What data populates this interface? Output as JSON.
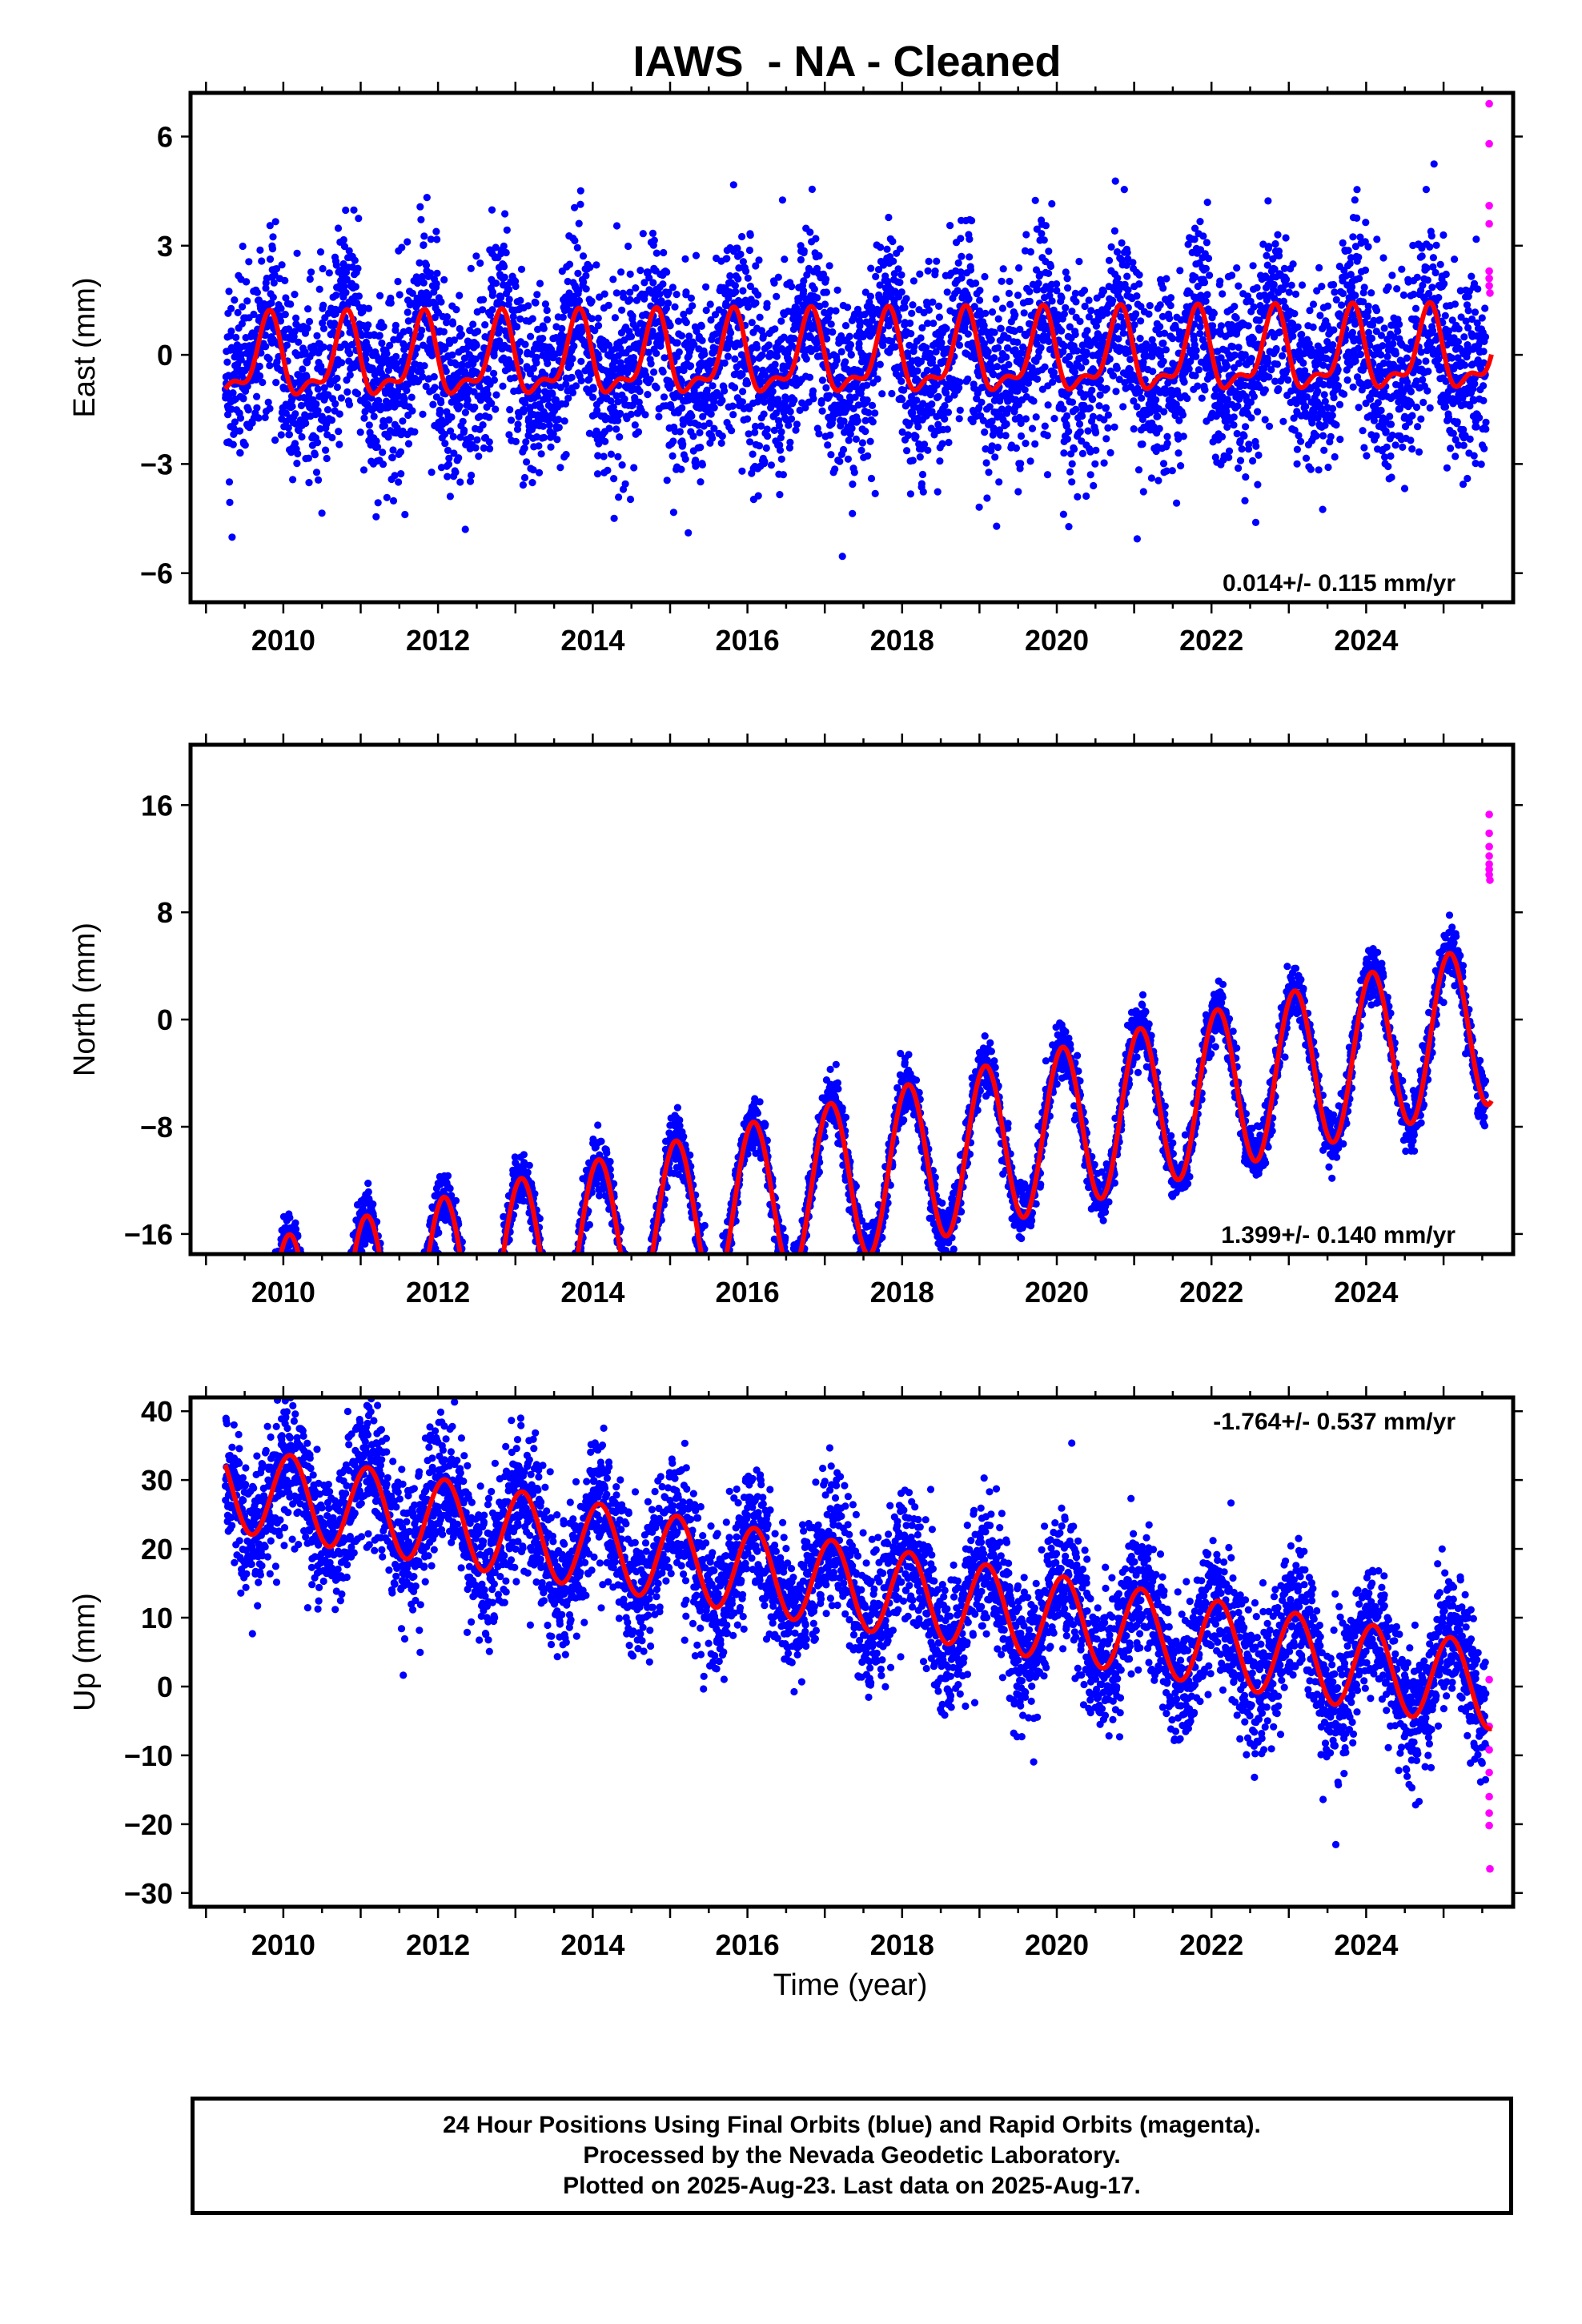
{
  "figure": {
    "title": "IAWS  - NA - Cleaned",
    "xlabel": "Time (year)",
    "footer": [
      "24 Hour Positions Using Final Orbits (blue) and Rapid Orbits (magenta).",
      "Processed by the Nevada Geodetic Laboratory.",
      "Plotted on 2025-Aug-23. Last data on 2025-Aug-17."
    ],
    "colors": {
      "final_orbits": "#0000ff",
      "rapid_orbits": "#ff00ff",
      "model": "#ff0000",
      "frame": "#000000"
    }
  },
  "chart_data": [
    {
      "type": "scatter",
      "name": "east",
      "ylabel": "East (mm)",
      "rate_label": "0.014+/- 0.115 mm/yr",
      "xlim": [
        2008.8,
        2025.9
      ],
      "ylim": [
        -6.8,
        7.2
      ],
      "xticks": [
        2010,
        2012,
        2014,
        2016,
        2018,
        2020,
        2022,
        2024
      ],
      "yticks": [
        -6,
        -3,
        0,
        3,
        6
      ],
      "ytick_labels": [
        "−6",
        "−3",
        "0",
        "3",
        "6"
      ],
      "series": [
        {
          "role": "final_orbits",
          "x_start": 2009.25,
          "x_end": 2025.55,
          "trend": 0.014,
          "offset": -0.1,
          "annual_amp": 1.0,
          "annual_phase": 2.8,
          "semiannual_amp": 0.45,
          "scatter_sd": 1.3
        },
        {
          "role": "rapid_orbits",
          "x": [
            2025.59,
            2025.59,
            2025.59,
            2025.59,
            2025.59,
            2025.59,
            2025.59,
            2025.6
          ],
          "y": [
            6.9,
            5.8,
            4.1,
            3.6,
            2.3,
            2.1,
            1.9,
            1.7
          ]
        },
        {
          "role": "model",
          "x_start": 2009.25,
          "x_end": 2025.62,
          "trend": 0.014,
          "offset": -0.1,
          "annual_amp": 1.0,
          "annual_phase": 2.8,
          "semiannual_amp": 0.45
        }
      ]
    },
    {
      "type": "scatter",
      "name": "north",
      "ylabel": "North (mm)",
      "rate_label": "1.399+/- 0.140 mm/yr",
      "xlim": [
        2008.8,
        2025.9
      ],
      "ylim": [
        -17.5,
        20.5
      ],
      "xticks": [
        2010,
        2012,
        2014,
        2016,
        2018,
        2020,
        2022,
        2024
      ],
      "yticks": [
        -16,
        -8,
        0,
        8,
        16
      ],
      "ytick_labels": [
        "−16",
        "−8",
        "0",
        "8",
        "16"
      ],
      "series": [
        {
          "role": "final_orbits",
          "x_start": 2009.25,
          "x_end": 2025.55,
          "trend": 1.399,
          "offset": -11.8,
          "annual_amp": 6.0,
          "annual_phase": 1.1,
          "semiannual_amp": 0.0,
          "scatter_sd": 1.0
        },
        {
          "role": "rapid_orbits",
          "x": [
            2025.59,
            2025.59,
            2025.59,
            2025.59,
            2025.59,
            2025.59,
            2025.59,
            2025.6
          ],
          "y": [
            15.3,
            13.9,
            12.9,
            12.2,
            11.6,
            11.2,
            10.8,
            10.4
          ]
        },
        {
          "role": "model",
          "x_start": 2009.25,
          "x_end": 2025.62,
          "trend": 1.399,
          "offset": -11.8,
          "annual_amp": 6.0,
          "annual_phase": 1.1,
          "semiannual_amp": 0.0
        }
      ]
    },
    {
      "type": "scatter",
      "name": "up",
      "ylabel": "Up (mm)",
      "rate_label": "-1.764+/- 0.537 mm/yr",
      "xlim": [
        2008.8,
        2025.9
      ],
      "ylim": [
        -32,
        42
      ],
      "xticks": [
        2010,
        2012,
        2014,
        2016,
        2018,
        2020,
        2022,
        2024
      ],
      "yticks": [
        -30,
        -20,
        -10,
        0,
        10,
        20,
        30,
        40
      ],
      "ytick_labels": [
        "−30",
        "−20",
        "−10",
        "0",
        "10",
        "20",
        "30",
        "40"
      ],
      "series": [
        {
          "role": "final_orbits",
          "x_start": 2009.25,
          "x_end": 2025.55,
          "trend": -1.764,
          "offset": 14.5,
          "annual_amp": 6.2,
          "annual_phase": 1.0,
          "semiannual_amp": 0.0,
          "scatter_sd": 5.0
        },
        {
          "role": "rapid_orbits",
          "x": [
            2025.59,
            2025.59,
            2025.59,
            2025.59,
            2025.59,
            2025.59,
            2025.59,
            2025.6
          ],
          "y": [
            1.0,
            -5.8,
            -9.2,
            -12.5,
            -16.0,
            -18.4,
            -20.2,
            -26.5
          ]
        },
        {
          "role": "model",
          "x_start": 2009.25,
          "x_end": 2025.62,
          "trend": -1.764,
          "offset": 14.5,
          "annual_amp": 6.2,
          "annual_phase": 1.0,
          "semiannual_amp": 0.0
        }
      ]
    }
  ]
}
